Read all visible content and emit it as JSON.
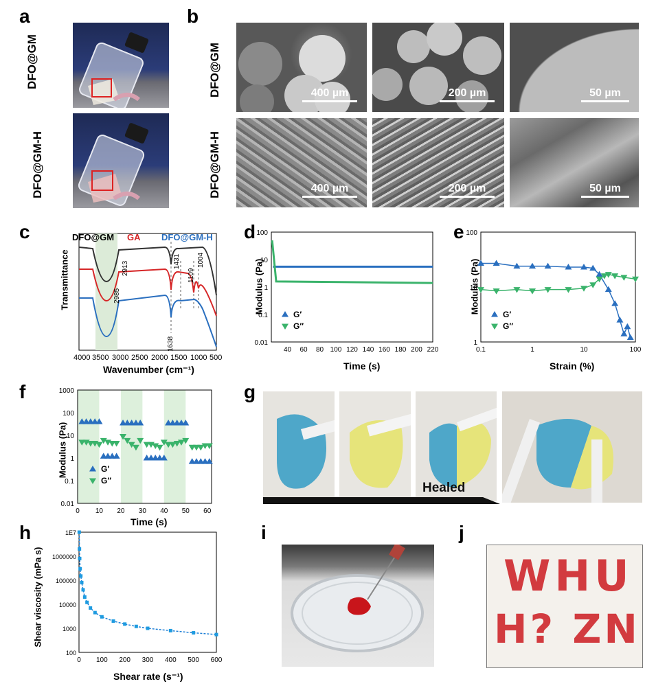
{
  "panel_labels": {
    "a": "a",
    "b": "b",
    "c": "c",
    "d": "d",
    "e": "e",
    "f": "f",
    "g": "g",
    "h": "h",
    "i": "i",
    "j": "j"
  },
  "panel_a": {
    "row1": "DFO@GM",
    "row2": "DFO@GM-H"
  },
  "panel_b": {
    "row1": "DFO@GM",
    "row2": "DFO@GM-H",
    "scales": [
      "400 µm",
      "200 µm",
      "50 µm",
      "400 µm",
      "200 µm",
      "50 µm"
    ]
  },
  "panel_g": {
    "healed": "Healed"
  },
  "panel_j": {
    "letters_row1": "WHU",
    "letters_row2": "H? ZN"
  },
  "chart_data": [
    {
      "id": "c",
      "type": "line",
      "legend": [
        "DFO@GM",
        "GA",
        "DFO@GM-H"
      ],
      "xlabel": "Wavenumber (cm⁻¹)",
      "ylabel": "Transmittance",
      "xlim": [
        4000,
        500
      ],
      "xticks": [
        "4000",
        "3500",
        "3000",
        "2500",
        "2000",
        "1500",
        "1000",
        "500"
      ],
      "peak_labels": [
        "2913",
        "2985",
        "1431",
        "1109",
        "1004",
        "1638"
      ],
      "colors": [
        "#333333",
        "#d62728",
        "#2a6fbf"
      ]
    },
    {
      "id": "d",
      "type": "line",
      "xlabel": "Time (s)",
      "ylabel": "Modulus (Pa)",
      "xlim": [
        20,
        220
      ],
      "ylim": [
        0.01,
        100
      ],
      "yscale": "log",
      "xticks": [
        "40",
        "60",
        "80",
        "100",
        "120",
        "140",
        "160",
        "180",
        "200",
        "220"
      ],
      "yticks": [
        "0.01",
        "0.1",
        "1",
        "10",
        "100"
      ],
      "series": [
        {
          "name": "G′",
          "values_note": "constant",
          "y": 5.5
        },
        {
          "name": "G″",
          "y": 1.4
        }
      ],
      "legend": [
        "G′",
        "G″"
      ]
    },
    {
      "id": "e",
      "type": "line",
      "xlabel": "Strain (%)",
      "ylabel": "Modulus (Pa)",
      "xlim": [
        0.1,
        100
      ],
      "ylim": [
        1,
        100
      ],
      "xscale": "log",
      "yscale": "log",
      "xticks": [
        "0.1",
        "1",
        "10",
        "100"
      ],
      "yticks": [
        "1",
        "10",
        "100"
      ],
      "series": [
        {
          "name": "G′",
          "x": [
            0.1,
            0.2,
            0.5,
            1,
            2,
            5,
            10,
            15,
            20,
            30,
            40,
            50,
            60,
            70,
            80
          ],
          "y": [
            27,
            27,
            24,
            24,
            24,
            23,
            23,
            22,
            17,
            9,
            5,
            2.5,
            1.4,
            1.9,
            1.2
          ]
        },
        {
          "name": "G″",
          "x": [
            0.1,
            0.2,
            0.5,
            1,
            2,
            5,
            10,
            15,
            20,
            25,
            30,
            40,
            60,
            100
          ],
          "y": [
            9,
            8.5,
            9,
            8.5,
            9,
            9,
            9.5,
            11,
            14,
            16,
            17,
            16,
            15,
            14
          ]
        }
      ],
      "legend": [
        "G′",
        "G″"
      ]
    },
    {
      "id": "f",
      "type": "scatter",
      "xlabel": "Time (s)",
      "ylabel": "Modulus (Pa)",
      "xlim": [
        0,
        62
      ],
      "ylim": [
        0.01,
        1000
      ],
      "yscale": "log",
      "xticks": [
        "0",
        "10",
        "20",
        "30",
        "40",
        "50",
        "60"
      ],
      "yticks": [
        "0.01",
        "0.1",
        "1",
        "10",
        "100",
        "1000"
      ],
      "series": [
        {
          "name": "G′",
          "x": [
            2,
            4,
            6,
            8,
            10,
            12,
            14,
            16,
            18,
            21,
            23,
            25,
            27,
            29,
            32,
            34,
            36,
            38,
            40,
            42,
            44,
            46,
            48,
            50,
            53,
            55,
            57,
            59,
            61
          ],
          "y": [
            40,
            40,
            40,
            40,
            40,
            1.2,
            1.2,
            1.2,
            1.2,
            35,
            35,
            35,
            35,
            35,
            1,
            1,
            1,
            1,
            1,
            35,
            35,
            35,
            35,
            35,
            0.7,
            0.7,
            0.7,
            0.7,
            0.7
          ]
        },
        {
          "name": "G″",
          "x": [
            2,
            4,
            6,
            8,
            10,
            12,
            14,
            16,
            18,
            21,
            23,
            25,
            27,
            29,
            32,
            34,
            36,
            38,
            40,
            42,
            44,
            46,
            48,
            50,
            53,
            55,
            57,
            59,
            61
          ],
          "y": [
            5,
            5,
            4.5,
            4.5,
            4,
            6,
            5,
            4.5,
            4.5,
            9,
            6,
            4,
            3,
            6,
            4,
            4,
            3.5,
            3,
            5,
            4,
            4,
            4.5,
            5,
            6,
            3,
            3,
            3,
            3.5,
            3.5
          ]
        }
      ],
      "legend": [
        "G′",
        "G″"
      ]
    },
    {
      "id": "h",
      "type": "line",
      "xlabel": "Shear rate (s⁻¹)",
      "ylabel": "Shear viscosity (mPa s)",
      "xlim": [
        0,
        600
      ],
      "ylim": [
        100,
        10000000
      ],
      "yscale": "log",
      "xticks": [
        "0",
        "100",
        "200",
        "300",
        "400",
        "500",
        "600"
      ],
      "yticks": [
        "100",
        "1000",
        "10000",
        "100000",
        "1000000",
        "1E7"
      ],
      "series": [
        {
          "name": "",
          "x": [
            1,
            2,
            3,
            5,
            8,
            12,
            18,
            25,
            35,
            50,
            70,
            100,
            150,
            200,
            250,
            300,
            400,
            500,
            600
          ],
          "y": [
            10000000,
            2000000,
            800000,
            300000,
            150000,
            80000,
            40000,
            20000,
            12000,
            7000,
            4500,
            3000,
            2000,
            1500,
            1200,
            1000,
            800,
            650,
            550
          ]
        }
      ]
    }
  ]
}
